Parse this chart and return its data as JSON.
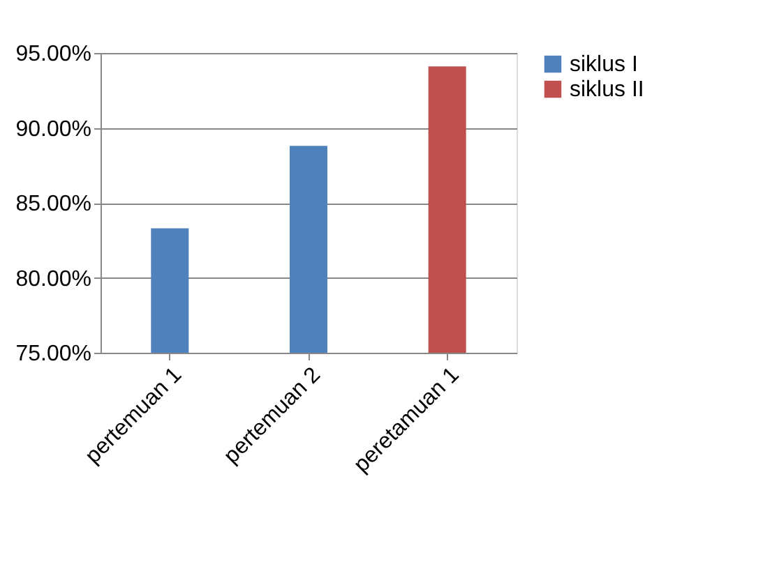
{
  "chart_data": {
    "type": "bar",
    "categories": [
      "pertemuan 1",
      "pertemuan 2",
      "peretamuan 1"
    ],
    "series": [
      {
        "name": "siklus I",
        "color": "#4f81bd",
        "values": [
          83.3,
          88.8,
          null
        ]
      },
      {
        "name": "siklus II",
        "color": "#c0504d",
        "values": [
          null,
          null,
          94.1
        ]
      }
    ],
    "ylim": [
      75,
      95
    ],
    "yticks": [
      {
        "value": 75,
        "label": "75.00%"
      },
      {
        "value": 80,
        "label": "80.00%"
      },
      {
        "value": 85,
        "label": "85.00%"
      },
      {
        "value": 90,
        "label": "90.00%"
      },
      {
        "value": 95,
        "label": "95.00%"
      }
    ],
    "grid": "y",
    "legend": "right"
  }
}
